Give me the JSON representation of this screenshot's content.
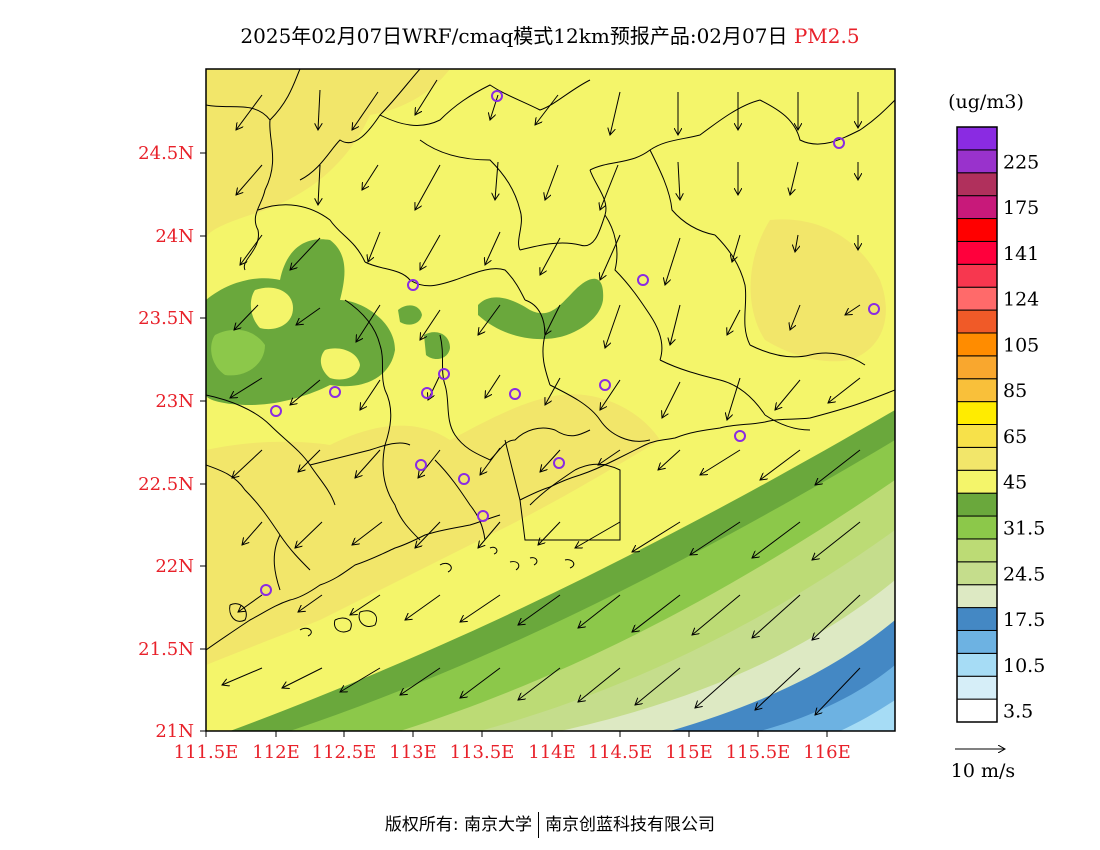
{
  "title": {
    "main": "2025年02月07日WRF/cmaq模式12km预报产品:02月07日",
    "pollutant": "PM2.5"
  },
  "axes": {
    "lon_labels": [
      "111.5E",
      "112E",
      "112.5E",
      "113E",
      "113.5E",
      "114E",
      "114.5E",
      "115E",
      "115.5E",
      "116E"
    ],
    "lat_labels": [
      "21N",
      "21.5N",
      "22N",
      "22.5N",
      "23N",
      "23.5N",
      "24N",
      "24.5N"
    ]
  },
  "legend": {
    "unit": "(ug/m3)",
    "colors": [
      "#ffffff",
      "#d6eef8",
      "#a6dcf5",
      "#6db2e2",
      "#4488c4",
      "#dde9c3",
      "#c5dd8c",
      "#bcdb75",
      "#8cc84a",
      "#6aa83c",
      "#f4f56a",
      "#f2e66a",
      "#f7e14a",
      "#ffec00",
      "#f9c03a",
      "#f9a72e",
      "#ff8c00",
      "#f05a28",
      "#ff6a6a",
      "#f7374f",
      "#ff003c",
      "#ff0000",
      "#c8197a",
      "#b0305c",
      "#9932cc",
      "#8a2be2"
    ],
    "labels": [
      "3.5",
      "10.5",
      "17.5",
      "24.5",
      "31.5",
      "45",
      "65",
      "85",
      "105",
      "124",
      "141",
      "175",
      "225"
    ]
  },
  "wind_scale": {
    "label": "10 m/s"
  },
  "footer": {
    "left": "版权所有: 南京大学",
    "right": "南京创蓝科技有限公司"
  }
}
